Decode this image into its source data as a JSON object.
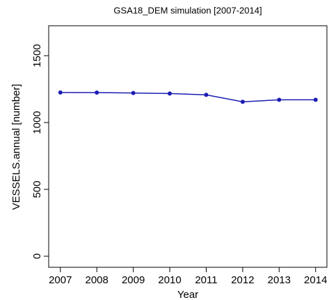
{
  "chart_data": {
    "type": "line",
    "title": "GSA18_DEM simulation [2007-2014]",
    "x_label": "Year",
    "y_label": "VESSELS.annual [number]",
    "x": [
      2007,
      2008,
      2009,
      2010,
      2011,
      2012,
      2013,
      2014
    ],
    "series": [
      {
        "color": "#1c1cb4",
        "values": [
          1225,
          1224,
          1221,
          1217,
          1207,
          1155,
          1170,
          1170
        ]
      }
    ],
    "xlim": [
      2006.68,
      2014.31
    ],
    "xticks": [
      2007,
      2008,
      2009,
      2010,
      2011,
      2012,
      2013,
      2014
    ],
    "ylim": [
      -83,
      1724
    ],
    "yticks": [
      0,
      500,
      1000,
      1500
    ]
  }
}
